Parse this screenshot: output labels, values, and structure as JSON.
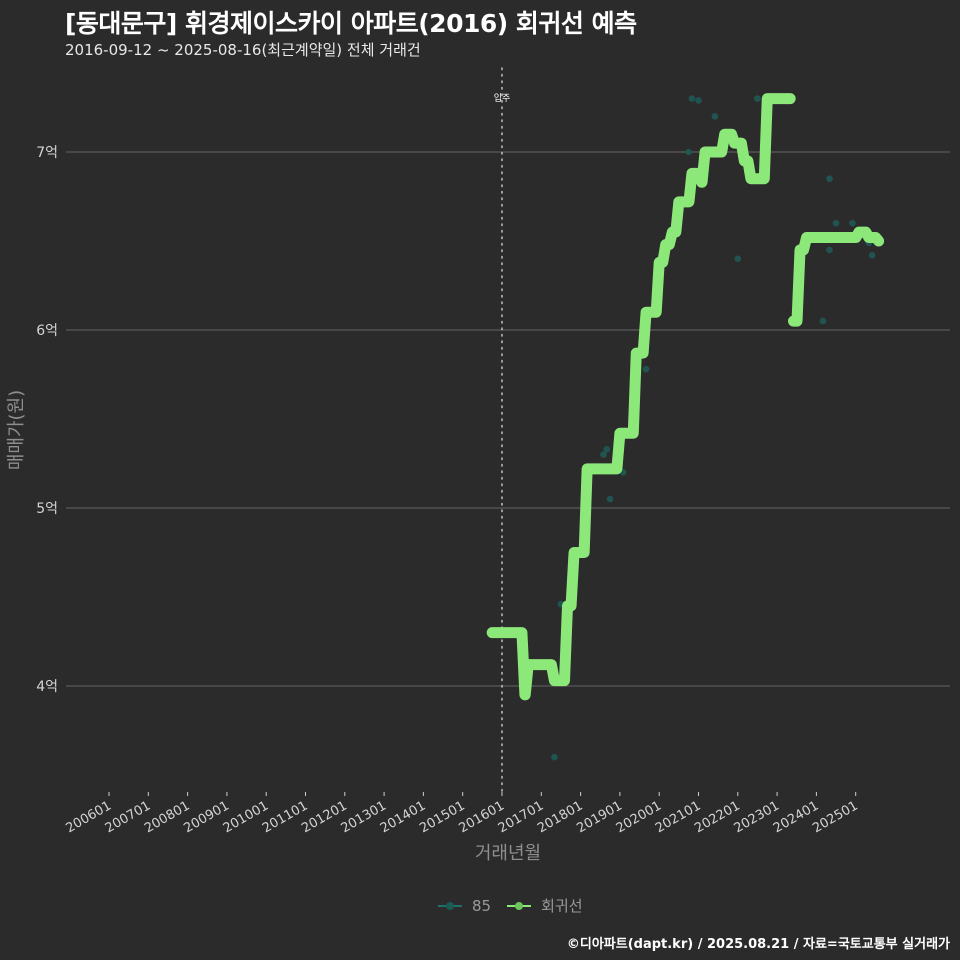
{
  "header": {
    "title": "[동대문구] 휘경제이스카이 아파트(2016) 회귀선 예측",
    "subtitle": "2016-09-12 ~ 2025-08-16(최근계약일) 전체 거래건"
  },
  "caption": "©디아파트(dapt.kr) / 2025.08.21 / 자료=국토교통부 실거래가",
  "legend": {
    "items": [
      {
        "label": "85",
        "color": "#1f6e6a"
      },
      {
        "label": "회귀선",
        "color": "#8de87a"
      }
    ]
  },
  "colors": {
    "background": "#2b2b2c",
    "gridline": "#5a5a5a",
    "regression": "#8de87a",
    "points": "#1f5c57",
    "vline": "#bbbbbb"
  },
  "chart_data": {
    "type": "line",
    "title": "[동대문구] 휘경제이스카이 아파트(2016) 회귀선 예측",
    "subtitle": "2016-09-12 ~ 2025-08-16(최근계약일) 전체 거래건",
    "xlabel": "거래년월",
    "ylabel": "매매가(원)",
    "x_ticks": [
      "200601",
      "200701",
      "200801",
      "200901",
      "201001",
      "201101",
      "201201",
      "201301",
      "201401",
      "201501",
      "201601",
      "201701",
      "201801",
      "201901",
      "202001",
      "202101",
      "202201",
      "202301",
      "202401",
      "202501"
    ],
    "y_ticks": [
      "4억",
      "5억",
      "6억",
      "7억"
    ],
    "y_tick_values": [
      4,
      5,
      6,
      7
    ],
    "ylim": [
      3.45,
      7.45
    ],
    "grid": "horizontal major lines",
    "legend_position": "bottom",
    "annotations": [
      {
        "x": "201601",
        "label": "입주",
        "type": "vertical dotted line"
      }
    ],
    "series": [
      {
        "name": "회귀선",
        "unit": "억",
        "segments": [
          [
            [
              "2015-10",
              4.3
            ],
            [
              "2016-07",
              4.3
            ],
            [
              "2016-08",
              3.95
            ],
            [
              "2016-09",
              4.12
            ],
            [
              "2017-03",
              4.12
            ],
            [
              "2017-05",
              4.03
            ],
            [
              "2017-08",
              4.03
            ],
            [
              "2017-09",
              4.45
            ],
            [
              "2017-11",
              4.75
            ],
            [
              "2018-03",
              5.22
            ],
            [
              "2018-11",
              5.22
            ],
            [
              "2019-01",
              5.42
            ],
            [
              "2019-06",
              5.87
            ],
            [
              "2019-09",
              6.1
            ],
            [
              "2020-01",
              6.38
            ],
            [
              "2020-03",
              6.48
            ],
            [
              "2020-05",
              6.55
            ],
            [
              "2020-07",
              6.72
            ],
            [
              "2020-11",
              6.88
            ],
            [
              "2021-02",
              6.83
            ],
            [
              "2021-03",
              7.0
            ],
            [
              "2021-07",
              7.0
            ],
            [
              "2021-09",
              7.1
            ],
            [
              "2021-12",
              7.05
            ],
            [
              "2022-03",
              6.95
            ],
            [
              "2022-05",
              6.85
            ],
            [
              "2022-09",
              6.85
            ],
            [
              "2022-10",
              7.3
            ],
            [
              "2023-05",
              7.3
            ]
          ],
          [
            [
              "2023-06",
              6.05
            ],
            [
              "2023-08",
              6.45
            ],
            [
              "2023-10",
              6.52
            ],
            [
              "2024-11",
              6.52
            ],
            [
              "2025-02",
              6.55
            ],
            [
              "2025-05",
              6.52
            ],
            [
              "2025-08",
              6.5
            ]
          ]
        ]
      },
      {
        "name": "85",
        "unit": "억",
        "points": [
          [
            "2017-05",
            3.6
          ],
          [
            "2017-07",
            4.46
          ],
          [
            "2018-08",
            5.3
          ],
          [
            "2018-09",
            5.33
          ],
          [
            "2018-10",
            5.05
          ],
          [
            "2019-02",
            5.2
          ],
          [
            "2019-08",
            5.9
          ],
          [
            "2019-09",
            5.78
          ],
          [
            "2020-10",
            7.0
          ],
          [
            "2020-11",
            7.3
          ],
          [
            "2021-01",
            7.29
          ],
          [
            "2021-06",
            7.2
          ],
          [
            "2022-01",
            6.4
          ],
          [
            "2022-07",
            7.3
          ],
          [
            "2024-03",
            6.05
          ],
          [
            "2024-05",
            6.85
          ],
          [
            "2024-05",
            6.45
          ],
          [
            "2024-07",
            6.6
          ],
          [
            "2024-12",
            6.6
          ],
          [
            "2025-05",
            6.49
          ],
          [
            "2025-06",
            6.42
          ]
        ]
      }
    ]
  }
}
